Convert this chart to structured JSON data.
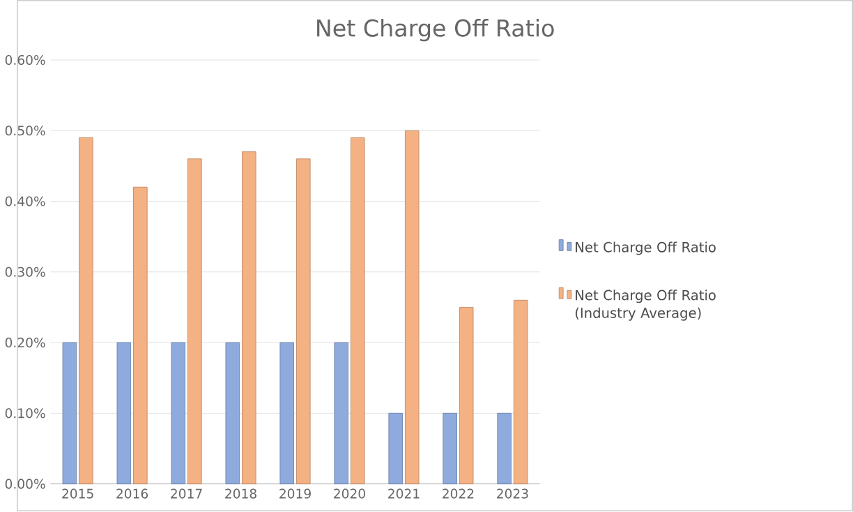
{
  "chart_data": {
    "type": "bar",
    "title": "Net Charge Off Ratio",
    "categories": [
      "2015",
      "2016",
      "2017",
      "2018",
      "2019",
      "2020",
      "2021",
      "2022",
      "2023"
    ],
    "series": [
      {
        "name": "Net Charge Off Ratio",
        "color": "#8faadc",
        "values": [
          0.2,
          0.2,
          0.2,
          0.2,
          0.2,
          0.2,
          0.1,
          0.1,
          0.1
        ]
      },
      {
        "name": "Net Charge Off Ratio (Industry Average)",
        "color": "#f4b183",
        "values": [
          0.49,
          0.42,
          0.46,
          0.47,
          0.46,
          0.49,
          0.5,
          0.25,
          0.26
        ]
      }
    ],
    "ylim": [
      0,
      0.6
    ],
    "yticks": [
      {
        "value": 0,
        "label": "0.00%"
      },
      {
        "value": 0.1,
        "label": "0.10%"
      },
      {
        "value": 0.2,
        "label": "0.20%"
      },
      {
        "value": 0.3,
        "label": "0.30%"
      },
      {
        "value": 0.4,
        "label": "0.40%"
      },
      {
        "value": 0.5,
        "label": "0.50%"
      },
      {
        "value": 0.6,
        "label": "0.60%"
      }
    ],
    "grid": "y",
    "legend": "right"
  }
}
